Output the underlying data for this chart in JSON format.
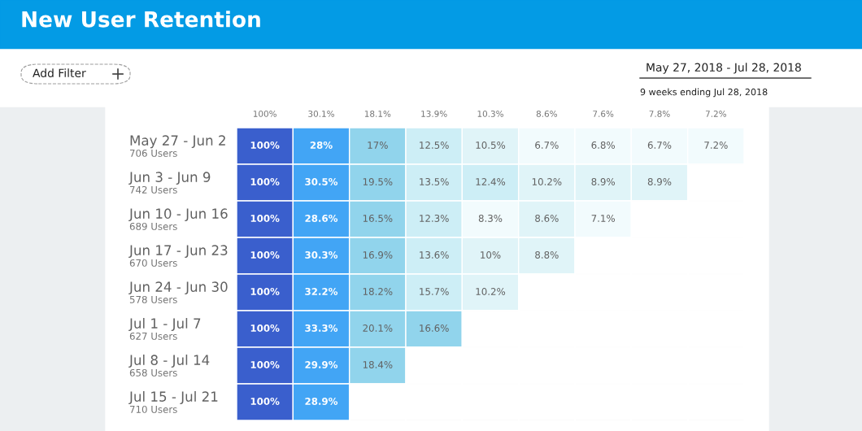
{
  "chart_data": {
    "type": "heatmap",
    "title": "New User Retention",
    "annotations": [
      "Add Filter",
      "May 27, 2018 - Jul 28, 2018",
      "9 weeks ending Jul 28, 2018"
    ],
    "categories": [
      "100%",
      "30.1%",
      "18.1%",
      "13.9%",
      "10.3%",
      "8.6%",
      "7.6%",
      "7.8%",
      "7.2%"
    ],
    "y_categories": [
      "May 27 - Jun 2\n706 Users",
      "Jun 3 - Jun 9\n742 Users",
      "Jun 10 - Jun 16\n689 Users",
      "Jun 17 - Jun 23\n670 Users",
      "Jun 24 - Jun 30\n578 Users",
      "Jul 1 - Jul 7\n627 Users",
      "Jul 8 - Jul 14\n658 Users",
      "Jul 15 - Jul 21\n710 Users"
    ],
    "cells": [
      [
        100,
        28,
        17,
        12.5,
        10.5,
        6.7,
        6.8,
        6.7,
        7.2
      ],
      [
        100,
        30.5,
        19.5,
        13.5,
        12.4,
        10.2,
        8.9,
        8.9,
        null
      ],
      [
        100,
        28.6,
        16.5,
        12.3,
        8.3,
        8.6,
        7.1,
        null,
        null
      ],
      [
        100,
        30.3,
        16.9,
        13.6,
        10,
        8.8,
        null,
        null,
        null
      ],
      [
        100,
        32.2,
        18.2,
        15.7,
        10.2,
        null,
        null,
        null,
        null
      ],
      [
        100,
        33.3,
        20.1,
        16.6,
        null,
        null,
        null,
        null,
        null
      ],
      [
        100,
        29.9,
        18.4,
        null,
        null,
        null,
        null,
        null,
        null
      ],
      [
        100,
        28.9,
        null,
        null,
        null,
        null,
        null,
        null,
        null
      ]
    ],
    "cell_labels": [
      [
        "100%",
        "28%",
        "17%",
        "12.5%",
        "10.5%",
        "6.7%",
        "6.8%",
        "6.7%",
        "7.2%"
      ],
      [
        "100%",
        "30.5%",
        "19.5%",
        "13.5%",
        "12.4%",
        "10.2%",
        "8.9%",
        "8.9%",
        null
      ],
      [
        "100%",
        "28.6%",
        "16.5%",
        "12.3%",
        "8.3%",
        "8.6%",
        "7.1%",
        null,
        null
      ],
      [
        "100%",
        "30.3%",
        "16.9%",
        "13.6%",
        "10%",
        "8.8%",
        null,
        null,
        null
      ],
      [
        "100%",
        "32.2%",
        "18.2%",
        "15.7%",
        "10.2%",
        null,
        null,
        null,
        null
      ],
      [
        "100%",
        "33.3%",
        "20.1%",
        "16.6%",
        null,
        null,
        null,
        null,
        null
      ],
      [
        "100%",
        "29.9%",
        "18.4%",
        null,
        null,
        null,
        null,
        null,
        null
      ],
      [
        "100%",
        "28.9%",
        null,
        null,
        null,
        null,
        null,
        null,
        null
      ]
    ]
  }
}
